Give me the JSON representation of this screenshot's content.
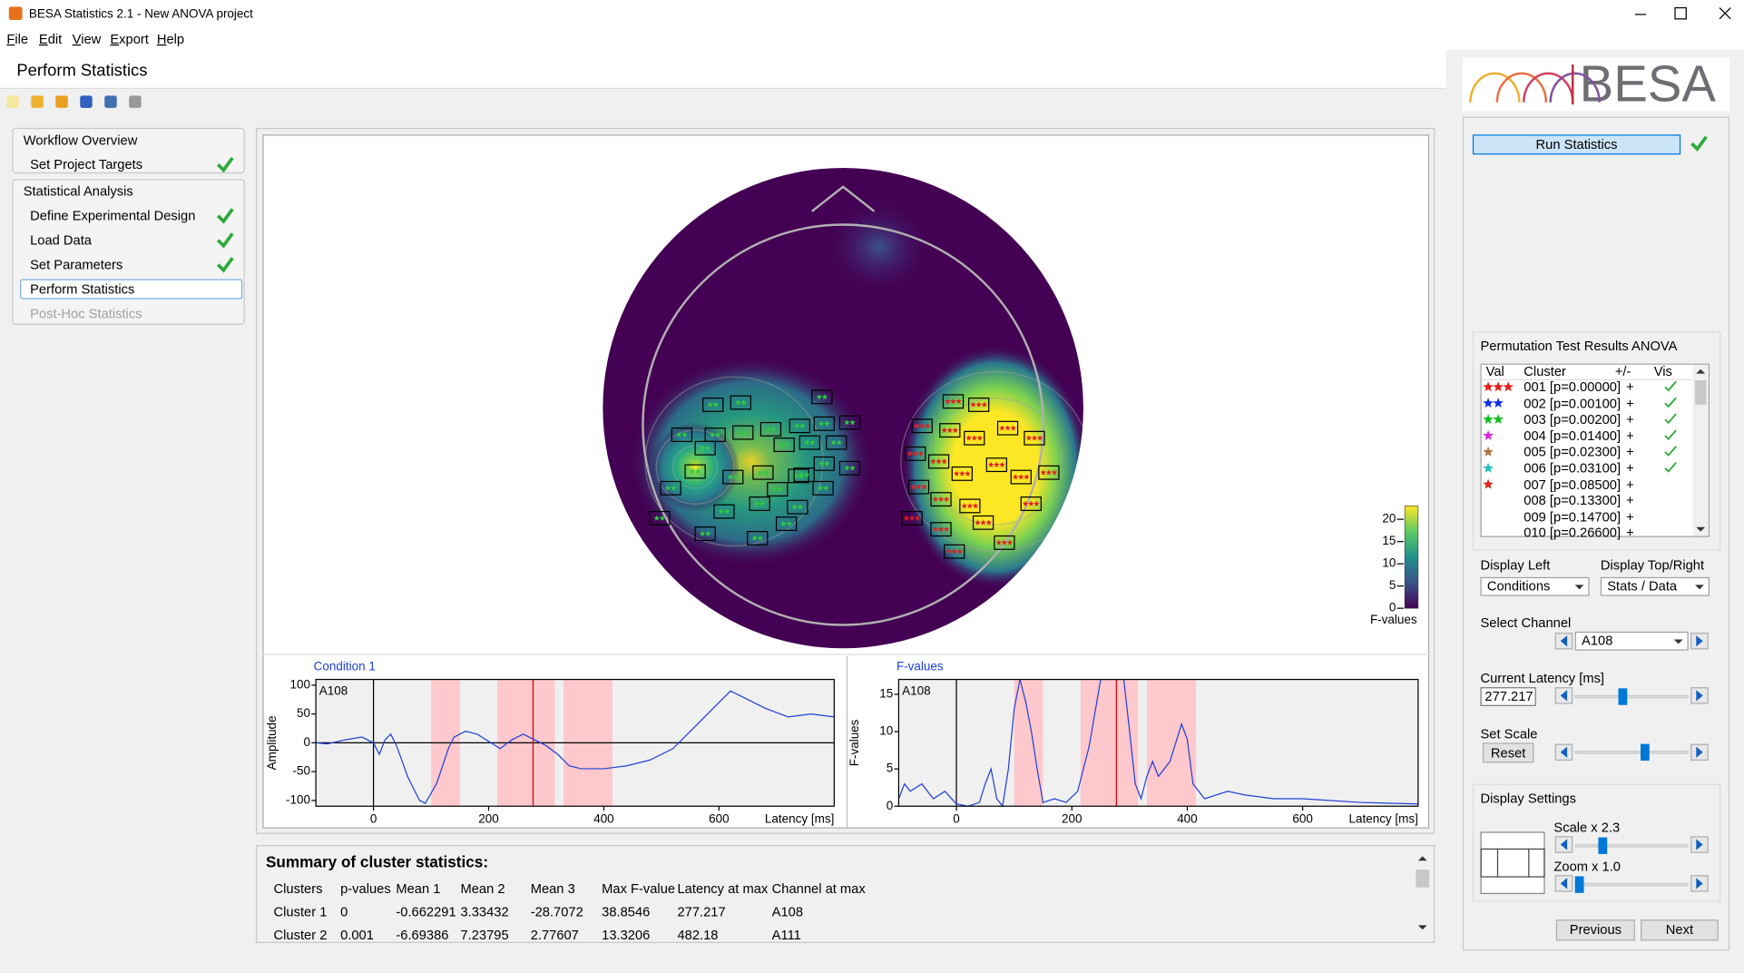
{
  "window": {
    "title": "BESA Statistics 2.1 - New ANOVA project"
  },
  "menu": [
    "File",
    "Edit",
    "View",
    "Export",
    "Help"
  ],
  "header": {
    "title": "Perform Statistics",
    "logo": "BESA"
  },
  "workflow": [
    {
      "title": "Workflow Overview",
      "items": [
        {
          "label": "Set Project Targets",
          "done": true
        }
      ]
    },
    {
      "title": "Statistical Analysis",
      "items": [
        {
          "label": "Define Experimental Design",
          "done": true
        },
        {
          "label": "Load Data",
          "done": true
        },
        {
          "label": "Set Parameters",
          "done": true
        },
        {
          "label": "Perform Statistics",
          "done": false,
          "selected": true
        },
        {
          "label": "Post-Hoc Statistics",
          "done": false,
          "disabled": true
        }
      ]
    }
  ],
  "topomap": {
    "colorbar": {
      "label": "F-values",
      "lim": [
        0,
        23
      ],
      "ticks": [
        0,
        5,
        10,
        15,
        20
      ]
    }
  },
  "charts": [
    {
      "type": "line",
      "title": "Condition 1",
      "ylabel": "Amplitude",
      "xlabel": "Latency [ms]",
      "channel": "A108",
      "color": "#2040d8",
      "span_color": "#ffc8cc",
      "xlim": [
        -100,
        800
      ],
      "ylim": [
        -110,
        110
      ],
      "xticks": [
        0,
        200,
        400,
        600
      ],
      "yticks": [
        -100,
        -50,
        0,
        50,
        100
      ],
      "spans": [
        [
          100,
          150
        ],
        [
          215,
          315
        ],
        [
          330,
          415
        ]
      ],
      "x": [
        -100,
        -80,
        -50,
        -20,
        0,
        10,
        20,
        30,
        40,
        60,
        80,
        90,
        110,
        130,
        140,
        160,
        180,
        220,
        240,
        260,
        280,
        300,
        320,
        340,
        360,
        400,
        440,
        480,
        520,
        560,
        600,
        620,
        640,
        680,
        720,
        760,
        800
      ],
      "values": [
        0,
        -2,
        5,
        10,
        0,
        -20,
        5,
        15,
        -5,
        -60,
        -100,
        -105,
        -70,
        -10,
        10,
        20,
        15,
        -10,
        5,
        15,
        5,
        -5,
        -20,
        -40,
        -45,
        -45,
        -40,
        -30,
        -10,
        30,
        70,
        90,
        80,
        60,
        45,
        50,
        45
      ]
    },
    {
      "type": "line",
      "title": "F-values",
      "ylabel": "F-values",
      "xlabel": "Latency [ms]",
      "channel": "A108",
      "color": "#2040d8",
      "span_color": "#ffc8cc",
      "xlim": [
        -100,
        800
      ],
      "ylim": [
        0,
        17
      ],
      "xticks": [
        0,
        200,
        400,
        600
      ],
      "yticks": [
        0,
        5,
        10,
        15
      ],
      "spans": [
        [
          100,
          150
        ],
        [
          215,
          315
        ],
        [
          330,
          415
        ]
      ],
      "x": [
        -100,
        -90,
        -80,
        -60,
        -40,
        -20,
        0,
        20,
        40,
        50,
        60,
        70,
        80,
        90,
        100,
        110,
        120,
        130,
        140,
        150,
        170,
        190,
        210,
        230,
        250,
        270,
        290,
        300,
        310,
        320,
        330,
        340,
        350,
        370,
        390,
        400,
        410,
        430,
        470,
        500,
        550,
        600,
        700,
        800
      ],
      "values": [
        1,
        3,
        2,
        3,
        1,
        2,
        0.3,
        0,
        0.5,
        3,
        5,
        1,
        0,
        5,
        13,
        17,
        14,
        10,
        5,
        0.5,
        1,
        0.5,
        2,
        8,
        17,
        17,
        17,
        10,
        3,
        1,
        4,
        6,
        4,
        6,
        11,
        9,
        3,
        1,
        2,
        1.5,
        1,
        1,
        0.5,
        0.3
      ]
    }
  ],
  "results": {
    "title": "Permutation Test Results ANOVA",
    "columns": [
      "Val",
      "Cluster",
      "+/-",
      "Vis"
    ],
    "rows": [
      {
        "cluster": "001 [p=0.00000]",
        "sign": "+",
        "visible": true,
        "stars": 3,
        "color": "#e02020"
      },
      {
        "cluster": "002 [p=0.00100]",
        "sign": "+",
        "visible": true,
        "stars": 2,
        "color": "#1030e0"
      },
      {
        "cluster": "003 [p=0.00200]",
        "sign": "+",
        "visible": true,
        "stars": 2,
        "color": "#10c020"
      },
      {
        "cluster": "004 [p=0.01400]",
        "sign": "+",
        "visible": true,
        "stars": 1,
        "color": "#e020e0"
      },
      {
        "cluster": "005 [p=0.02300]",
        "sign": "+",
        "visible": true,
        "stars": 1,
        "color": "#b07040"
      },
      {
        "cluster": "006 [p=0.03100]",
        "sign": "+",
        "visible": true,
        "stars": 1,
        "color": "#20c0c0"
      },
      {
        "cluster": "007 [p=0.08500]",
        "sign": "+",
        "visible": false,
        "stars": 1,
        "color": "#e02020"
      },
      {
        "cluster": "008 [p=0.13300]",
        "sign": "+",
        "visible": false,
        "stars": 0,
        "color": "#000000"
      },
      {
        "cluster": "009 [p=0.14700]",
        "sign": "+",
        "visible": false,
        "stars": 0,
        "color": "#000000"
      },
      {
        "cluster": "010 [p=0.26600]",
        "sign": "+",
        "visible": false,
        "stars": 0,
        "color": "#000000"
      }
    ]
  },
  "controls": {
    "run": "Run Statistics",
    "run_done": true,
    "display_left_label": "Display Left",
    "display_left": "Conditions",
    "display_top_label": "Display Top/Right",
    "display_top": "Stats / Data",
    "select_channel_label": "Select Channel",
    "channel": "A108",
    "latency_label": "Current Latency [ms]",
    "current_latency": 277.217,
    "set_scale_label": "Set Scale",
    "reset": "Reset",
    "display_settings": "Display Settings",
    "scale": "Scale x 2.3",
    "zoom": "Zoom x 1.0",
    "previous": "Previous",
    "next": "Next"
  },
  "summary": {
    "title": "Summary of cluster statistics:",
    "columns": [
      "Clusters",
      "p-values",
      "Mean 1",
      "Mean 2",
      "Mean 3",
      "Max F-value",
      "Latency at max",
      "Channel at max"
    ],
    "rows": [
      [
        "Cluster 1",
        "0",
        "-0.662291",
        "3.33432",
        "-28.7072",
        "38.8546",
        "277.217",
        "A108"
      ],
      [
        "Cluster 2",
        "0.001",
        "-6.69386",
        "7.23795",
        "2.77607",
        "13.3206",
        "482.18",
        "A111"
      ]
    ]
  }
}
